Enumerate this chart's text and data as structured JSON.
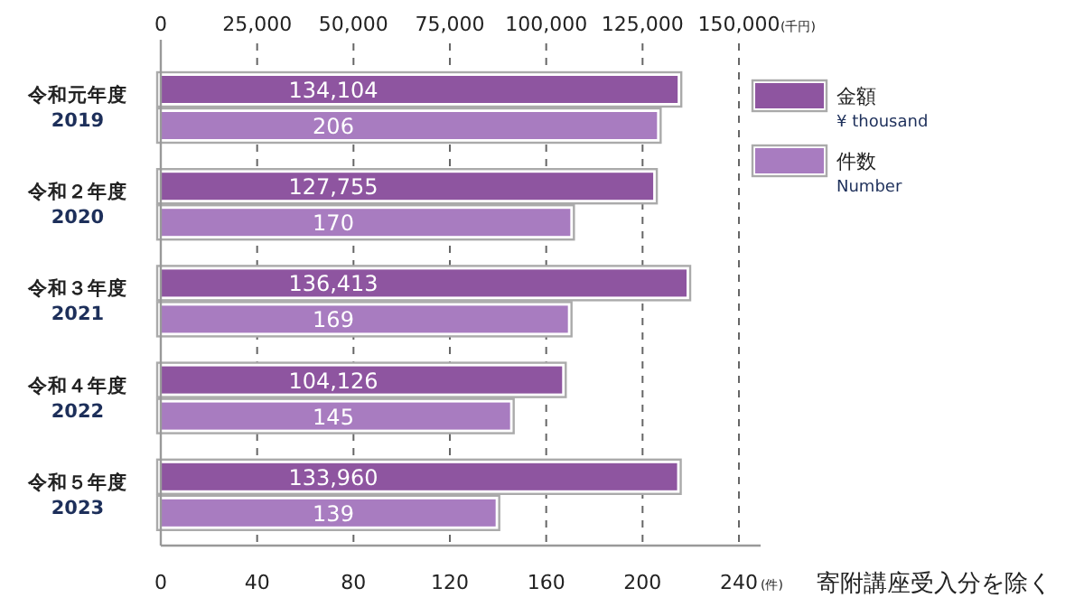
{
  "chart_data": {
    "type": "bar",
    "orientation": "horizontal",
    "categories": [
      "令和元年度\n2019",
      "令和２年度\n2020",
      "令和３年度\n2021",
      "令和４年度\n2022",
      "令和５年度\n2023"
    ],
    "series": [
      {
        "name": "金額\n¥ thousand",
        "color": "#8e55a0",
        "axis": "x2",
        "values": [
          134104,
          127755,
          136413,
          104126,
          133960
        ],
        "value_labels": [
          "134,104",
          "127,755",
          "136,413",
          "104,126",
          "133,960"
        ]
      },
      {
        "name": "件数\nNumber",
        "color": "#a87cc0",
        "values": [
          206,
          170,
          169,
          145,
          139
        ],
        "value_labels": [
          "206",
          "170",
          "169",
          "145",
          "139"
        ]
      }
    ],
    "xlim": [
      0,
      240
    ],
    "xticks": [
      0,
      40,
      80,
      120,
      160,
      200,
      240
    ],
    "xlabel": "(件)",
    "x2lim": [
      0,
      150000
    ],
    "x2ticks": [
      {
        "value": 0,
        "label": "0"
      },
      {
        "value": 25000,
        "label": "25,000"
      },
      {
        "value": 50000,
        "label": "50,000"
      },
      {
        "value": 75000,
        "label": "75,000"
      },
      {
        "value": 100000,
        "label": "100,000"
      },
      {
        "value": 125000,
        "label": "125,000"
      },
      {
        "value": 150000,
        "label": "150,000"
      }
    ],
    "x2label": "(千円)",
    "grid": "x",
    "legend": "right",
    "annotations": [
      "寄附講座受入分を除く"
    ]
  }
}
